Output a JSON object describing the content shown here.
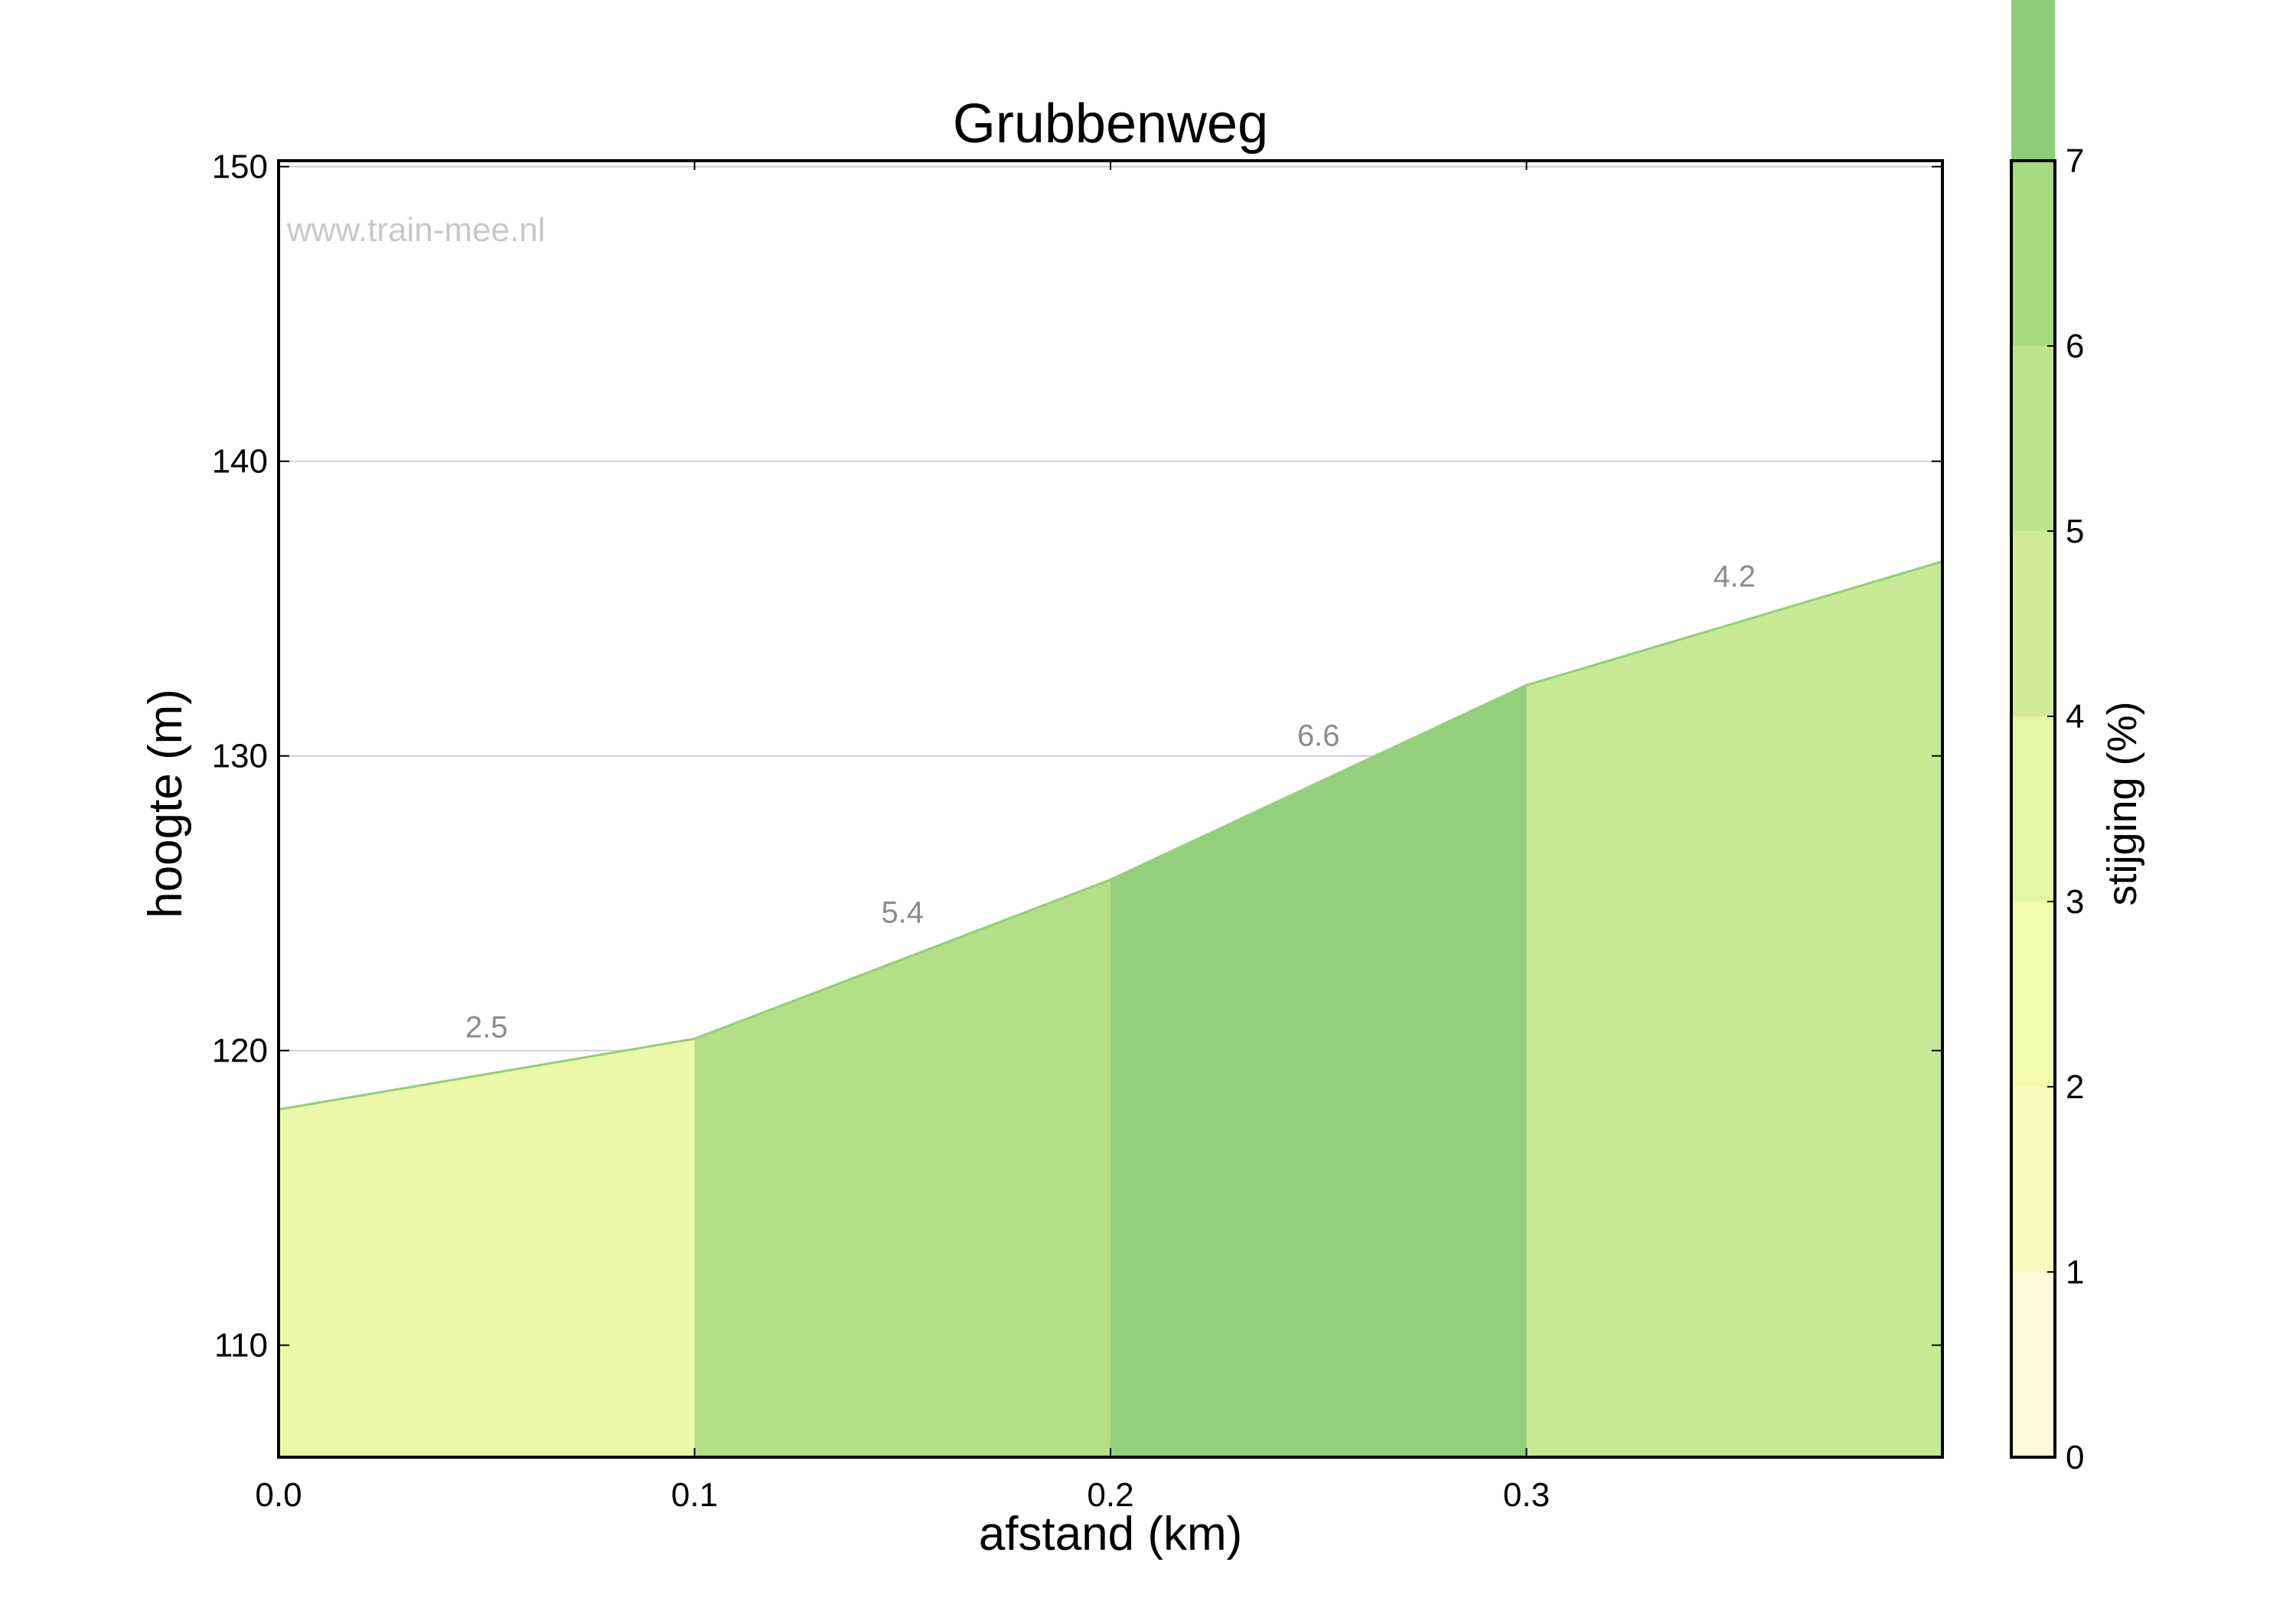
{
  "chart_data": {
    "type": "area",
    "title": "Grubbenweg",
    "xlabel": "afstand (km)",
    "ylabel": "hoogte (m)",
    "watermark": "www.train-mee.nl",
    "xlim": [
      0,
      0.4
    ],
    "ylim": [
      106.2,
      150.2
    ],
    "xticks": [
      0.0,
      0.1,
      0.2,
      0.3
    ],
    "xtick_labels": [
      "0.0",
      "0.1",
      "0.2",
      "0.3"
    ],
    "yticks": [
      110,
      120,
      130,
      140,
      150
    ],
    "ytick_labels": [
      "110",
      "120",
      "130",
      "140",
      "150"
    ],
    "grid": true,
    "profile": {
      "x": [
        0.0,
        0.1,
        0.2,
        0.3,
        0.4
      ],
      "y": [
        118.0,
        120.4,
        125.8,
        132.4,
        136.6
      ]
    },
    "segments": [
      {
        "x0": 0.0,
        "x1": 0.1,
        "grade": 2.5,
        "label": "2.5",
        "color": "#ebf9a8"
      },
      {
        "x0": 0.1,
        "x1": 0.2,
        "grade": 5.4,
        "label": "5.4",
        "color": "#b3df86"
      },
      {
        "x0": 0.2,
        "x1": 0.3,
        "grade": 6.6,
        "label": "6.6",
        "color": "#94d07c"
      },
      {
        "x0": 0.3,
        "x1": 0.4,
        "grade": 4.2,
        "label": "4.2",
        "color": "#c8e993"
      }
    ],
    "segment_label_color": "#8c8c8c",
    "outline_color": "#8fd36a",
    "colorbar": {
      "label": "stijging (%)",
      "min": 0,
      "max": 7,
      "ticks": [
        0,
        1,
        2,
        3,
        4,
        5,
        6,
        7
      ],
      "tick_labels": [
        "0",
        "1",
        "2",
        "3",
        "4",
        "5",
        "6",
        "7"
      ],
      "colors": [
        "#fdfbd9",
        "#f8fcc1",
        "#f1fbad",
        "#e5f6a4",
        "#cfeb96",
        "#bce48c",
        "#a6da80",
        "#8ecc78"
      ]
    }
  }
}
